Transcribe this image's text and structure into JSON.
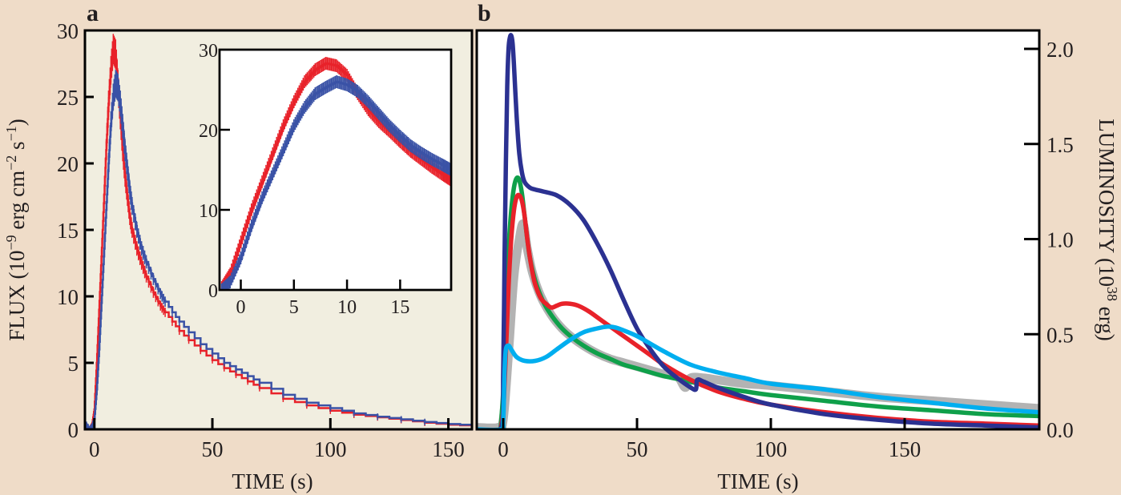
{
  "figure": {
    "background": "#efdcc8",
    "panels": [
      "a",
      "b"
    ]
  },
  "chart_data": [
    {
      "panel_label": "a",
      "type": "line",
      "title": "",
      "xlabel": "TIME (s)",
      "ylabel": "FLUX (10^-9 erg cm^-2 s^-1)",
      "ylabel_parts": {
        "base": "FLUX (10",
        "exp1": "−9",
        "mid": " erg cm",
        "exp2": "−2",
        "mid2": " s",
        "exp3": "−1",
        "end": ")"
      },
      "xlim": [
        -4,
        160
      ],
      "ylim": [
        0,
        30
      ],
      "xticks": [
        0,
        50,
        100,
        150
      ],
      "yticks": [
        0,
        5,
        10,
        15,
        20,
        25,
        30
      ],
      "background": "#f1eee0",
      "grid": false,
      "series": [
        {
          "name": "red",
          "color": "#e8222a",
          "x": [
            -4,
            -2,
            -1,
            0,
            1,
            2,
            3,
            4,
            5,
            6,
            7,
            8,
            9,
            10,
            11,
            12,
            13,
            14,
            15,
            16,
            18,
            20,
            22,
            25,
            28,
            30,
            33,
            36,
            40,
            45,
            50,
            55,
            60,
            65,
            70,
            80,
            90,
            100,
            110,
            120,
            130,
            140,
            150,
            160
          ],
          "y": [
            0,
            0,
            0.3,
            1.5,
            5,
            9,
            13,
            17,
            21,
            24.5,
            27,
            28.6,
            28.2,
            26,
            23.5,
            21,
            19,
            17.5,
            16,
            15,
            13.6,
            12.5,
            11.5,
            10.3,
            9.3,
            8.8,
            8.1,
            7.4,
            6.7,
            5.9,
            5.2,
            4.6,
            4.1,
            3.6,
            3.1,
            2.3,
            1.8,
            1.4,
            1.1,
            0.9,
            0.7,
            0.5,
            0.35,
            0.25
          ]
        },
        {
          "name": "blue",
          "color": "#3a52a6",
          "x": [
            -4,
            -2,
            -1,
            0,
            1,
            2,
            3,
            4,
            5,
            6,
            7,
            8,
            9,
            10,
            11,
            12,
            13,
            14,
            15,
            16,
            18,
            20,
            22,
            25,
            28,
            30,
            33,
            36,
            40,
            45,
            50,
            55,
            60,
            65,
            70,
            80,
            90,
            100,
            110,
            120,
            130,
            140,
            150,
            160
          ],
          "y": [
            0.5,
            0,
            0.2,
            0.8,
            3,
            6,
            9.5,
            13,
            16.5,
            20,
            23,
            25,
            26,
            25.7,
            24.5,
            22.8,
            21,
            19.5,
            18,
            16.8,
            15,
            13.6,
            12.6,
            11.3,
            10.2,
            9.6,
            8.8,
            8.1,
            7.3,
            6.4,
            5.7,
            5.0,
            4.5,
            4.0,
            3.5,
            2.6,
            2.0,
            1.6,
            1.2,
            0.95,
            0.75,
            0.55,
            0.4,
            0.3
          ]
        }
      ],
      "inset": {
        "type": "line",
        "xlim": [
          -2,
          19.8
        ],
        "ylim": [
          0,
          30
        ],
        "xticks": [
          0,
          5,
          10,
          15
        ],
        "yticks": [
          0,
          10,
          20,
          30
        ],
        "series": [
          {
            "name": "red",
            "color": "#e8222a",
            "x": [
              -1.8,
              -1,
              0,
              1,
              2,
              3,
              4,
              5,
              6,
              7,
              8,
              9,
              10,
              11,
              12,
              13,
              14,
              15,
              16,
              17,
              18,
              19,
              19.8
            ],
            "y": [
              0.3,
              2,
              6,
              10,
              13.5,
              17,
              20.5,
              23.5,
              26,
              27.5,
              28.3,
              28,
              26.8,
              24.5,
              22.5,
              21,
              19.8,
              18.5,
              17.3,
              16.3,
              15.3,
              14.4,
              13.7
            ]
          },
          {
            "name": "blue",
            "color": "#3a52a6",
            "x": [
              -1.8,
              -1,
              0,
              1,
              2,
              3,
              4,
              5,
              6,
              7,
              8,
              9,
              10,
              11,
              12,
              13,
              14,
              15,
              16,
              17,
              18,
              19,
              19.8
            ],
            "y": [
              0,
              1,
              4,
              8,
              11.5,
              14.5,
              17.5,
              20.5,
              22.8,
              24.5,
              25.3,
              26,
              25.6,
              24.8,
              23.5,
              22,
              20.5,
              19.2,
              18,
              17.1,
              16.3,
              15.6,
              15.0
            ]
          }
        ]
      }
    },
    {
      "panel_label": "b",
      "type": "line",
      "title": "",
      "xlabel": "TIME (s)",
      "ylabel": "LUMINOSITY (10^38 erg)",
      "ylabel_parts": {
        "base": "LUMINOSITY (10",
        "exp1": "38",
        "end": " erg)"
      },
      "y_axis_side": "right",
      "xlim": [
        -10,
        200
      ],
      "ylim": [
        0,
        2.1
      ],
      "xticks": [
        0,
        50,
        100,
        150
      ],
      "yticks": [
        0.0,
        0.5,
        1.0,
        1.5,
        2.0
      ],
      "ytick_labels": [
        "0.0",
        "0.5",
        "1.0",
        "1.5",
        "2.0"
      ],
      "background": "#ffffff",
      "grid": false,
      "series": [
        {
          "name": "gray",
          "color": "#b3b3b3",
          "x": [
            -10,
            -2,
            0,
            2,
            4,
            6,
            7.5,
            9,
            11,
            14,
            18,
            22,
            26,
            30,
            35,
            40,
            45,
            50,
            55,
            60,
            65,
            68,
            70,
            75,
            80,
            90,
            100,
            120,
            140,
            160,
            180,
            200
          ],
          "y": [
            0.01,
            0.01,
            0.05,
            0.4,
            0.8,
            1.0,
            1.08,
            0.95,
            0.82,
            0.7,
            0.6,
            0.53,
            0.48,
            0.44,
            0.4,
            0.37,
            0.35,
            0.33,
            0.31,
            0.29,
            0.28,
            0.22,
            0.27,
            0.27,
            0.26,
            0.24,
            0.23,
            0.2,
            0.17,
            0.15,
            0.13,
            0.11
          ]
        },
        {
          "name": "green",
          "color": "#0fa04a",
          "x": [
            -1,
            0,
            1,
            2,
            3,
            4,
            5,
            6,
            7,
            8,
            9,
            10,
            12,
            15,
            18,
            22,
            26,
            30,
            35,
            40,
            45,
            50,
            60,
            70,
            80,
            90,
            100,
            120,
            140,
            160,
            180,
            200
          ],
          "y": [
            0,
            0.2,
            0.6,
            0.95,
            1.15,
            1.27,
            1.32,
            1.31,
            1.24,
            1.12,
            1.0,
            0.9,
            0.78,
            0.67,
            0.6,
            0.53,
            0.48,
            0.44,
            0.4,
            0.37,
            0.34,
            0.32,
            0.28,
            0.25,
            0.22,
            0.2,
            0.18,
            0.15,
            0.12,
            0.1,
            0.08,
            0.07
          ]
        },
        {
          "name": "red",
          "color": "#e8222a",
          "x": [
            -1,
            0,
            1,
            2,
            3,
            4,
            5,
            6,
            7,
            8,
            9,
            10,
            11,
            12,
            14,
            16,
            18,
            20,
            22,
            25,
            28,
            32,
            36,
            40,
            45,
            50,
            55,
            60,
            70,
            80,
            90,
            100,
            120,
            140,
            160,
            180,
            200
          ],
          "y": [
            0,
            0.1,
            0.4,
            0.75,
            1.0,
            1.15,
            1.22,
            1.23,
            1.2,
            1.12,
            1.0,
            0.9,
            0.82,
            0.76,
            0.69,
            0.66,
            0.64,
            0.65,
            0.66,
            0.66,
            0.65,
            0.62,
            0.58,
            0.54,
            0.49,
            0.44,
            0.39,
            0.34,
            0.26,
            0.2,
            0.16,
            0.13,
            0.09,
            0.06,
            0.04,
            0.03,
            0.02
          ]
        },
        {
          "name": "dark-blue",
          "color": "#2b3191",
          "x": [
            -10,
            -1,
            0,
            0.5,
            1,
            1.5,
            2,
            2.5,
            3,
            3.5,
            4,
            5,
            6,
            7,
            8,
            10,
            12,
            15,
            20,
            25,
            30,
            35,
            40,
            45,
            50,
            55,
            60,
            65,
            70,
            72,
            72.5,
            75,
            80,
            90,
            100,
            120,
            140,
            160,
            180,
            200
          ],
          "y": [
            0,
            0,
            0.3,
            0.9,
            1.4,
            1.8,
            2.0,
            2.06,
            2.07,
            2.03,
            1.92,
            1.65,
            1.45,
            1.35,
            1.3,
            1.27,
            1.26,
            1.25,
            1.23,
            1.18,
            1.1,
            0.98,
            0.84,
            0.68,
            0.53,
            0.42,
            0.33,
            0.27,
            0.22,
            0.21,
            0.26,
            0.25,
            0.22,
            0.17,
            0.13,
            0.08,
            0.05,
            0.03,
            0.02,
            0.01
          ]
        },
        {
          "name": "light-blue",
          "color": "#00aeef",
          "x": [
            -10,
            -1,
            0,
            0.5,
            1,
            2,
            3,
            5,
            8,
            12,
            16,
            20,
            25,
            30,
            35,
            39,
            42,
            45,
            50,
            55,
            60,
            70,
            80,
            90,
            100,
            120,
            140,
            160,
            180,
            200
          ],
          "y": [
            0,
            0,
            0.05,
            0.3,
            0.42,
            0.44,
            0.42,
            0.38,
            0.36,
            0.36,
            0.38,
            0.42,
            0.47,
            0.51,
            0.53,
            0.54,
            0.535,
            0.52,
            0.49,
            0.45,
            0.41,
            0.34,
            0.3,
            0.27,
            0.24,
            0.21,
            0.17,
            0.14,
            0.11,
            0.09
          ]
        }
      ]
    }
  ]
}
